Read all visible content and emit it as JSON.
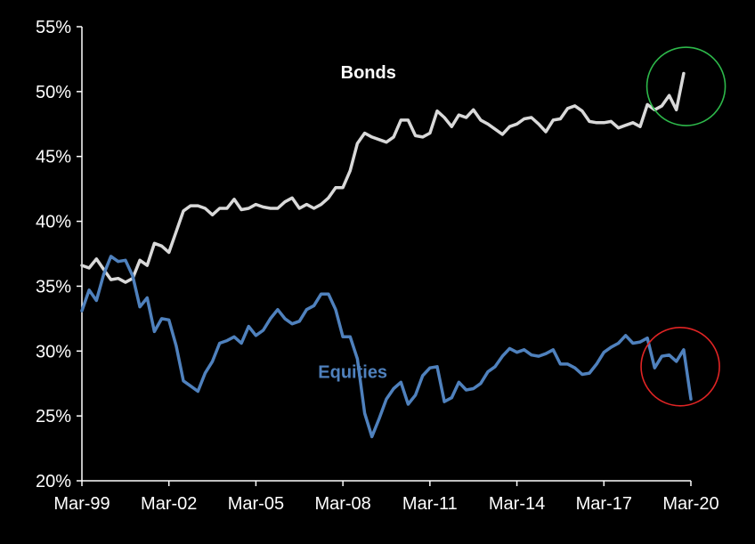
{
  "chart_data": {
    "type": "line",
    "x_ticks": [
      "Mar-99",
      "Mar-02",
      "Mar-05",
      "Mar-08",
      "Mar-11",
      "Mar-14",
      "Mar-17",
      "Mar-20"
    ],
    "y_ticks": [
      "20%",
      "25%",
      "30%",
      "35%",
      "40%",
      "45%",
      "50%",
      "55%"
    ],
    "ylim": [
      20,
      55
    ],
    "xlim": [
      1999.167,
      2020.167
    ],
    "grid": false,
    "legend": "inline labels",
    "series": [
      {
        "name": "Bonds",
        "color": "#d9d9d9",
        "label_color": "#ffffff",
        "points": [
          [
            1999.167,
            36.6
          ],
          [
            1999.417,
            36.4
          ],
          [
            1999.667,
            37.1
          ],
          [
            1999.917,
            36.3
          ],
          [
            2000.167,
            35.5
          ],
          [
            2000.417,
            35.6
          ],
          [
            2000.667,
            35.3
          ],
          [
            2000.917,
            35.6
          ],
          [
            2001.167,
            37.0
          ],
          [
            2001.417,
            36.6
          ],
          [
            2001.667,
            38.3
          ],
          [
            2001.917,
            38.1
          ],
          [
            2002.167,
            37.6
          ],
          [
            2002.417,
            39.2
          ],
          [
            2002.667,
            40.8
          ],
          [
            2002.917,
            41.2
          ],
          [
            2003.167,
            41.2
          ],
          [
            2003.417,
            41.0
          ],
          [
            2003.667,
            40.5
          ],
          [
            2003.917,
            41.0
          ],
          [
            2004.167,
            41.0
          ],
          [
            2004.417,
            41.7
          ],
          [
            2004.667,
            40.9
          ],
          [
            2004.917,
            41.0
          ],
          [
            2005.167,
            41.3
          ],
          [
            2005.417,
            41.1
          ],
          [
            2005.667,
            41.0
          ],
          [
            2005.917,
            41.0
          ],
          [
            2006.167,
            41.5
          ],
          [
            2006.417,
            41.8
          ],
          [
            2006.667,
            41.0
          ],
          [
            2006.917,
            41.3
          ],
          [
            2007.167,
            41.0
          ],
          [
            2007.417,
            41.3
          ],
          [
            2007.667,
            41.8
          ],
          [
            2007.917,
            42.6
          ],
          [
            2008.167,
            42.6
          ],
          [
            2008.417,
            43.9
          ],
          [
            2008.667,
            46.0
          ],
          [
            2008.917,
            46.8
          ],
          [
            2009.167,
            46.5
          ],
          [
            2009.417,
            46.3
          ],
          [
            2009.667,
            46.1
          ],
          [
            2009.917,
            46.5
          ],
          [
            2010.167,
            47.8
          ],
          [
            2010.417,
            47.8
          ],
          [
            2010.667,
            46.6
          ],
          [
            2010.917,
            46.5
          ],
          [
            2011.167,
            46.8
          ],
          [
            2011.417,
            48.5
          ],
          [
            2011.667,
            48.0
          ],
          [
            2011.917,
            47.3
          ],
          [
            2012.167,
            48.2
          ],
          [
            2012.417,
            48.0
          ],
          [
            2012.667,
            48.6
          ],
          [
            2012.917,
            47.8
          ],
          [
            2013.167,
            47.5
          ],
          [
            2013.417,
            47.1
          ],
          [
            2013.667,
            46.7
          ],
          [
            2013.917,
            47.3
          ],
          [
            2014.167,
            47.5
          ],
          [
            2014.417,
            47.9
          ],
          [
            2014.667,
            48.0
          ],
          [
            2014.917,
            47.5
          ],
          [
            2015.167,
            46.9
          ],
          [
            2015.417,
            47.8
          ],
          [
            2015.667,
            47.9
          ],
          [
            2015.917,
            48.7
          ],
          [
            2016.167,
            48.9
          ],
          [
            2016.417,
            48.5
          ],
          [
            2016.667,
            47.7
          ],
          [
            2016.917,
            47.6
          ],
          [
            2017.167,
            47.6
          ],
          [
            2017.417,
            47.7
          ],
          [
            2017.667,
            47.2
          ],
          [
            2017.917,
            47.4
          ],
          [
            2018.167,
            47.6
          ],
          [
            2018.417,
            47.3
          ],
          [
            2018.667,
            49.0
          ],
          [
            2018.917,
            48.6
          ],
          [
            2019.167,
            48.9
          ],
          [
            2019.417,
            49.7
          ],
          [
            2019.667,
            48.6
          ],
          [
            2019.917,
            51.4
          ]
        ]
      },
      {
        "name": "Equities",
        "color": "#4f81bd",
        "label_color": "#4f81bd",
        "points": [
          [
            1999.167,
            33.1
          ],
          [
            1999.417,
            34.7
          ],
          [
            1999.667,
            33.9
          ],
          [
            1999.917,
            35.9
          ],
          [
            2000.167,
            37.3
          ],
          [
            2000.417,
            36.9
          ],
          [
            2000.667,
            37.0
          ],
          [
            2000.917,
            35.8
          ],
          [
            2001.167,
            33.4
          ],
          [
            2001.417,
            34.1
          ],
          [
            2001.667,
            31.5
          ],
          [
            2001.917,
            32.5
          ],
          [
            2002.167,
            32.4
          ],
          [
            2002.417,
            30.4
          ],
          [
            2002.667,
            27.7
          ],
          [
            2002.917,
            27.3
          ],
          [
            2003.167,
            26.9
          ],
          [
            2003.417,
            28.3
          ],
          [
            2003.667,
            29.2
          ],
          [
            2003.917,
            30.6
          ],
          [
            2004.167,
            30.8
          ],
          [
            2004.417,
            31.1
          ],
          [
            2004.667,
            30.6
          ],
          [
            2004.917,
            31.9
          ],
          [
            2005.167,
            31.2
          ],
          [
            2005.417,
            31.6
          ],
          [
            2005.667,
            32.5
          ],
          [
            2005.917,
            33.2
          ],
          [
            2006.167,
            32.5
          ],
          [
            2006.417,
            32.1
          ],
          [
            2006.667,
            32.3
          ],
          [
            2006.917,
            33.2
          ],
          [
            2007.167,
            33.5
          ],
          [
            2007.417,
            34.4
          ],
          [
            2007.667,
            34.4
          ],
          [
            2007.917,
            33.2
          ],
          [
            2008.167,
            31.1
          ],
          [
            2008.417,
            31.1
          ],
          [
            2008.667,
            29.4
          ],
          [
            2008.917,
            25.2
          ],
          [
            2009.167,
            23.4
          ],
          [
            2009.417,
            24.8
          ],
          [
            2009.667,
            26.3
          ],
          [
            2009.917,
            27.1
          ],
          [
            2010.167,
            27.6
          ],
          [
            2010.417,
            25.9
          ],
          [
            2010.667,
            26.6
          ],
          [
            2010.917,
            28.1
          ],
          [
            2011.167,
            28.7
          ],
          [
            2011.417,
            28.8
          ],
          [
            2011.667,
            26.1
          ],
          [
            2011.917,
            26.4
          ],
          [
            2012.167,
            27.6
          ],
          [
            2012.417,
            27.0
          ],
          [
            2012.667,
            27.1
          ],
          [
            2012.917,
            27.5
          ],
          [
            2013.167,
            28.4
          ],
          [
            2013.417,
            28.8
          ],
          [
            2013.667,
            29.6
          ],
          [
            2013.917,
            30.2
          ],
          [
            2014.167,
            29.9
          ],
          [
            2014.417,
            30.1
          ],
          [
            2014.667,
            29.7
          ],
          [
            2014.917,
            29.6
          ],
          [
            2015.167,
            29.8
          ],
          [
            2015.417,
            30.1
          ],
          [
            2015.667,
            29.0
          ],
          [
            2015.917,
            29.0
          ],
          [
            2016.167,
            28.7
          ],
          [
            2016.417,
            28.2
          ],
          [
            2016.667,
            28.3
          ],
          [
            2016.917,
            29.0
          ],
          [
            2017.167,
            29.9
          ],
          [
            2017.417,
            30.3
          ],
          [
            2017.667,
            30.6
          ],
          [
            2017.917,
            31.2
          ],
          [
            2018.167,
            30.6
          ],
          [
            2018.417,
            30.7
          ],
          [
            2018.667,
            31.0
          ],
          [
            2018.917,
            28.7
          ],
          [
            2019.167,
            29.6
          ],
          [
            2019.417,
            29.7
          ],
          [
            2019.667,
            29.2
          ],
          [
            2019.917,
            30.1
          ],
          [
            2020.167,
            26.3
          ]
        ]
      }
    ],
    "annotations": [
      {
        "type": "circle",
        "color": "#2db84a",
        "target_series": "Bonds",
        "center": [
          2020.0,
          50.4
        ]
      },
      {
        "type": "circle",
        "color": "#e02424",
        "target_series": "Equities",
        "center": [
          2019.8,
          28.8
        ]
      }
    ]
  }
}
